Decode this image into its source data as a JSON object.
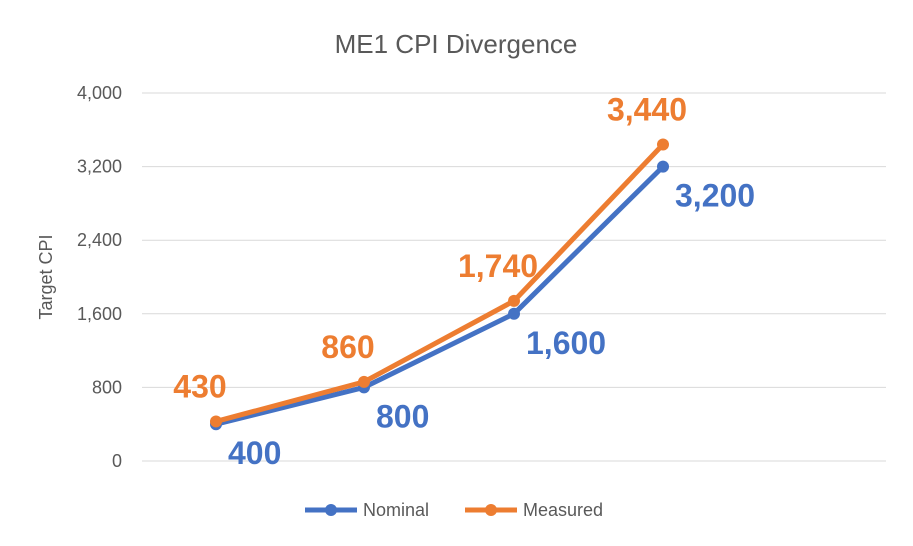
{
  "chart_data": {
    "type": "line",
    "title": "ME1 CPI Divergence",
    "xlabel": "",
    "ylabel": "Target CPI",
    "ylim": [
      0,
      4000
    ],
    "yticks": [
      0,
      800,
      1600,
      2400,
      3200,
      4000
    ],
    "ytick_labels": [
      "0",
      "800",
      "1,600",
      "2,400",
      "3,200",
      "4,000"
    ],
    "categories": [
      "",
      "",
      "",
      ""
    ],
    "grid": true,
    "legend_position": "bottom",
    "series": [
      {
        "name": "Nominal",
        "color": "#4472C4",
        "values": [
          400,
          800,
          1600,
          3200
        ],
        "labels": [
          "400",
          "800",
          "1,600",
          "3,200"
        ],
        "label_position": "below-right"
      },
      {
        "name": "Measured",
        "color": "#ED7D31",
        "values": [
          430,
          860,
          1740,
          3440
        ],
        "labels": [
          "430",
          "860",
          "1,740",
          "3,440"
        ],
        "label_position": "above-left"
      }
    ]
  }
}
